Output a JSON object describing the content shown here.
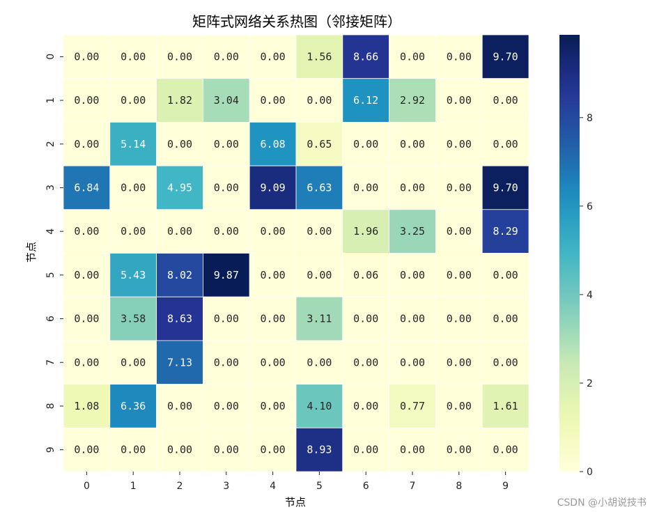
{
  "chart_data": {
    "type": "heatmap",
    "title": "矩阵式网络关系热图（邻接矩阵）",
    "xlabel": "节点",
    "ylabel": "节点",
    "x_categories": [
      "0",
      "1",
      "2",
      "3",
      "4",
      "5",
      "6",
      "7",
      "8",
      "9"
    ],
    "y_categories": [
      "0",
      "1",
      "2",
      "3",
      "4",
      "5",
      "6",
      "7",
      "8",
      "9"
    ],
    "values": [
      [
        0.0,
        0.0,
        0.0,
        0.0,
        0.0,
        1.56,
        8.66,
        0.0,
        0.0,
        9.7
      ],
      [
        0.0,
        0.0,
        1.82,
        3.04,
        0.0,
        0.0,
        6.12,
        2.92,
        0.0,
        0.0
      ],
      [
        0.0,
        5.14,
        0.0,
        0.0,
        6.08,
        0.65,
        0.0,
        0.0,
        0.0,
        0.0
      ],
      [
        6.84,
        0.0,
        4.95,
        0.0,
        9.09,
        6.63,
        0.0,
        0.0,
        0.0,
        9.7
      ],
      [
        0.0,
        0.0,
        0.0,
        0.0,
        0.0,
        0.0,
        1.96,
        3.25,
        0.0,
        8.29
      ],
      [
        0.0,
        5.43,
        8.02,
        9.87,
        0.0,
        0.0,
        0.06,
        0.0,
        0.0,
        0.0
      ],
      [
        0.0,
        3.58,
        8.63,
        0.0,
        0.0,
        3.11,
        0.0,
        0.0,
        0.0,
        0.0
      ],
      [
        0.0,
        0.0,
        7.13,
        0.0,
        0.0,
        0.0,
        0.0,
        0.0,
        0.0,
        0.0
      ],
      [
        1.08,
        6.36,
        0.0,
        0.0,
        0.0,
        4.1,
        0.0,
        0.77,
        0.0,
        1.61
      ],
      [
        0.0,
        0.0,
        0.0,
        0.0,
        0.0,
        8.93,
        0.0,
        0.0,
        0.0,
        0.0
      ]
    ],
    "colormap": "YlGnBu",
    "value_range": [
      0,
      9.87
    ],
    "colorbar_ticks": [
      0,
      2,
      4,
      6,
      8
    ],
    "colorbar_tick_labels": [
      "0",
      "2",
      "4",
      "6",
      "8"
    ],
    "annotation_format": "0.00"
  },
  "watermark": "CSDN @小胡说技书"
}
